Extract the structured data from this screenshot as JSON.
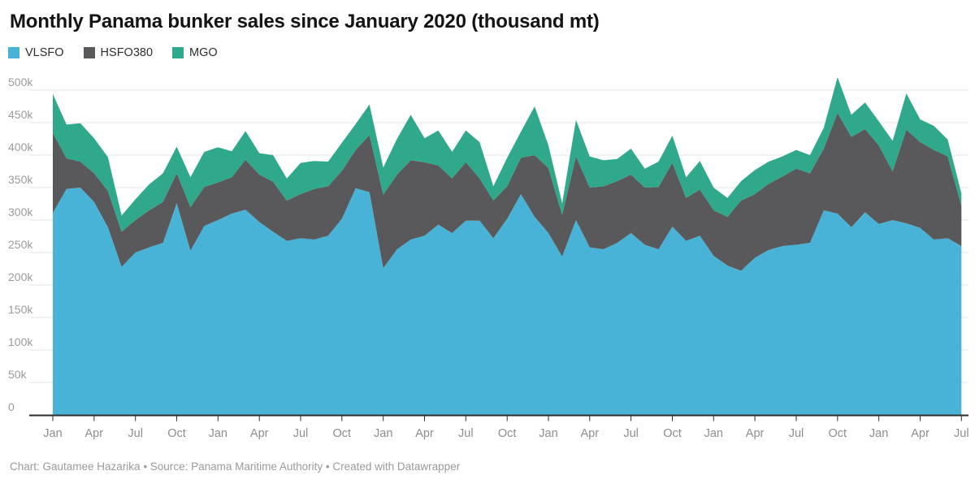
{
  "header": {
    "title": "Monthly Panama bunker sales since January 2020 (thousand mt)"
  },
  "footer": {
    "credit": "Chart: Gautamee Hazarika  • Source: Panama Maritime Authority • Created with Datawrapper"
  },
  "chart_data": {
    "type": "area",
    "stacked": true,
    "title": "Monthly Panama bunker sales since January 2020 (thousand mt)",
    "values_unit": "thousand mt",
    "ylim": [
      0,
      500
    ],
    "grid": "horizontal",
    "legend_position": "top-left",
    "y_tick_values": [
      500,
      450,
      400,
      350,
      300,
      250,
      200,
      150,
      100,
      50,
      0
    ],
    "y_tick_labels": [
      "500k",
      "450k",
      "400k",
      "350k",
      "300k",
      "250k",
      "200k",
      "150k",
      "100k",
      "50k",
      "0"
    ],
    "x_tick_every": 3,
    "x": [
      "Jan 2020",
      "Feb 2020",
      "Mar 2020",
      "Apr 2020",
      "May 2020",
      "Jun 2020",
      "Jul 2020",
      "Aug 2020",
      "Sep 2020",
      "Oct 2020",
      "Nov 2020",
      "Dec 2020",
      "Jan 2021",
      "Feb 2021",
      "Mar 2021",
      "Apr 2021",
      "May 2021",
      "Jun 2021",
      "Jul 2021",
      "Aug 2021",
      "Sep 2021",
      "Oct 2021",
      "Nov 2021",
      "Dec 2021",
      "Jan 2022",
      "Feb 2022",
      "Mar 2022",
      "Apr 2022",
      "May 2022",
      "Jun 2022",
      "Jul 2022",
      "Aug 2022",
      "Sep 2022",
      "Oct 2022",
      "Nov 2022",
      "Dec 2022",
      "Jan 2023",
      "Feb 2023",
      "Mar 2023",
      "Apr 2023",
      "May 2023",
      "Jun 2023",
      "Jul 2023",
      "Aug 2023",
      "Sep 2023",
      "Oct 2023",
      "Nov 2023",
      "Dec 2023",
      "Jan 2024",
      "Feb 2024",
      "Mar 2024",
      "Apr 2024",
      "May 2024",
      "Jun 2024",
      "Jul 2024",
      "Aug 2024",
      "Sep 2024",
      "Oct 2024",
      "Nov 2024",
      "Dec 2024",
      "Jan 2025",
      "Feb 2025",
      "Mar 2025",
      "Apr 2025",
      "May 2025",
      "Jun 2025",
      "Jul 2025"
    ],
    "series": [
      {
        "name": "VLSFO",
        "color": "#48B3D7",
        "values": [
          311,
          348,
          350,
          328,
          289,
          228,
          250,
          258,
          265,
          326,
          253,
          291,
          300,
          310,
          316,
          297,
          282,
          268,
          272,
          270,
          276,
          302,
          349,
          343,
          226,
          255,
          270,
          276,
          293,
          280,
          299,
          299,
          272,
          302,
          340,
          305,
          280,
          244,
          300,
          258,
          255,
          265,
          280,
          262,
          255,
          290,
          268,
          276,
          245,
          230,
          222,
          242,
          254,
          260,
          262,
          265,
          315,
          310,
          289,
          312,
          294,
          300,
          295,
          288,
          270,
          272,
          260
        ]
      },
      {
        "name": "HSFO380",
        "color": "#59595B",
        "values": [
          123,
          47,
          40,
          44,
          56,
          54,
          50,
          57,
          63,
          46,
          67,
          60,
          58,
          56,
          77,
          73,
          77,
          62,
          68,
          78,
          76,
          74,
          59,
          88,
          113,
          115,
          122,
          113,
          91,
          84,
          90,
          65,
          58,
          50,
          56,
          95,
          100,
          64,
          98,
          92,
          97,
          95,
          90,
          88,
          96,
          98,
          66,
          71,
          70,
          75,
          108,
          98,
          102,
          107,
          117,
          107,
          95,
          155,
          139,
          128,
          121,
          75,
          144,
          132,
          138,
          126,
          62
        ]
      },
      {
        "name": "MGO",
        "color": "#2FA88C",
        "values": [
          60,
          52,
          59,
          54,
          52,
          25,
          32,
          40,
          44,
          41,
          46,
          54,
          54,
          40,
          44,
          33,
          41,
          34,
          48,
          43,
          38,
          43,
          40,
          47,
          42,
          55,
          70,
          37,
          54,
          41,
          49,
          56,
          22,
          44,
          40,
          75,
          35,
          18,
          56,
          48,
          40,
          34,
          40,
          29,
          39,
          42,
          32,
          44,
          35,
          29,
          30,
          37,
          34,
          31,
          29,
          28,
          32,
          55,
          34,
          41,
          37,
          47,
          56,
          35,
          37,
          26,
          19
        ]
      }
    ]
  }
}
